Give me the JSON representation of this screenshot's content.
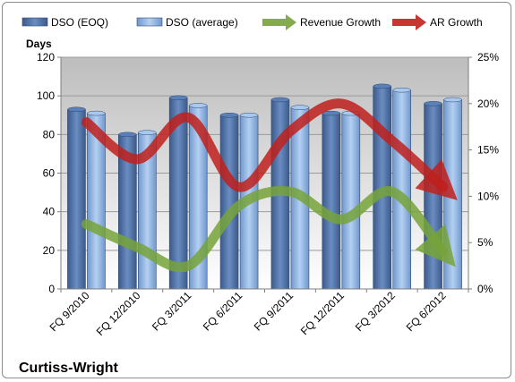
{
  "chart_data": {
    "type": "bar",
    "title": "",
    "company": "Curtiss-Wright",
    "y_left_label": "Days",
    "y_left_lim": [
      0,
      120
    ],
    "y_left_ticks": [
      "0",
      "20",
      "40",
      "60",
      "80",
      "100",
      "120"
    ],
    "y_right_lim": [
      0,
      25
    ],
    "y_right_ticks": [
      "0%",
      "5%",
      "10%",
      "15%",
      "20%",
      "25%"
    ],
    "categories": [
      "FQ 9/2010",
      "FQ 12/2010",
      "FQ 3/2011",
      "FQ 6/2011",
      "FQ 9/2011",
      "FQ 12/2011",
      "FQ 3/2012",
      "FQ 6/2012"
    ],
    "bar_series": [
      {
        "name": "DSO (EOQ)",
        "values": [
          93,
          80,
          99,
          90,
          98,
          91,
          105,
          96
        ],
        "color": "#4a6fa5"
      },
      {
        "name": "DSO (average)",
        "values": [
          91,
          81,
          95,
          90,
          94,
          91,
          103,
          98
        ],
        "color": "#8fb4e3"
      }
    ],
    "line_series": [
      {
        "name": "Revenue Growth",
        "values": [
          7,
          4.5,
          2.5,
          9,
          10.5,
          7.5,
          10.5,
          4
        ],
        "color": "#77a33a",
        "axis": "right"
      },
      {
        "name": "AR Growth",
        "values": [
          18,
          14,
          18.5,
          11,
          17,
          20,
          16,
          11
        ],
        "color": "#c0201c",
        "axis": "right"
      }
    ],
    "legend_position": "top",
    "grid": true,
    "plot_background": "gradient-gray"
  }
}
